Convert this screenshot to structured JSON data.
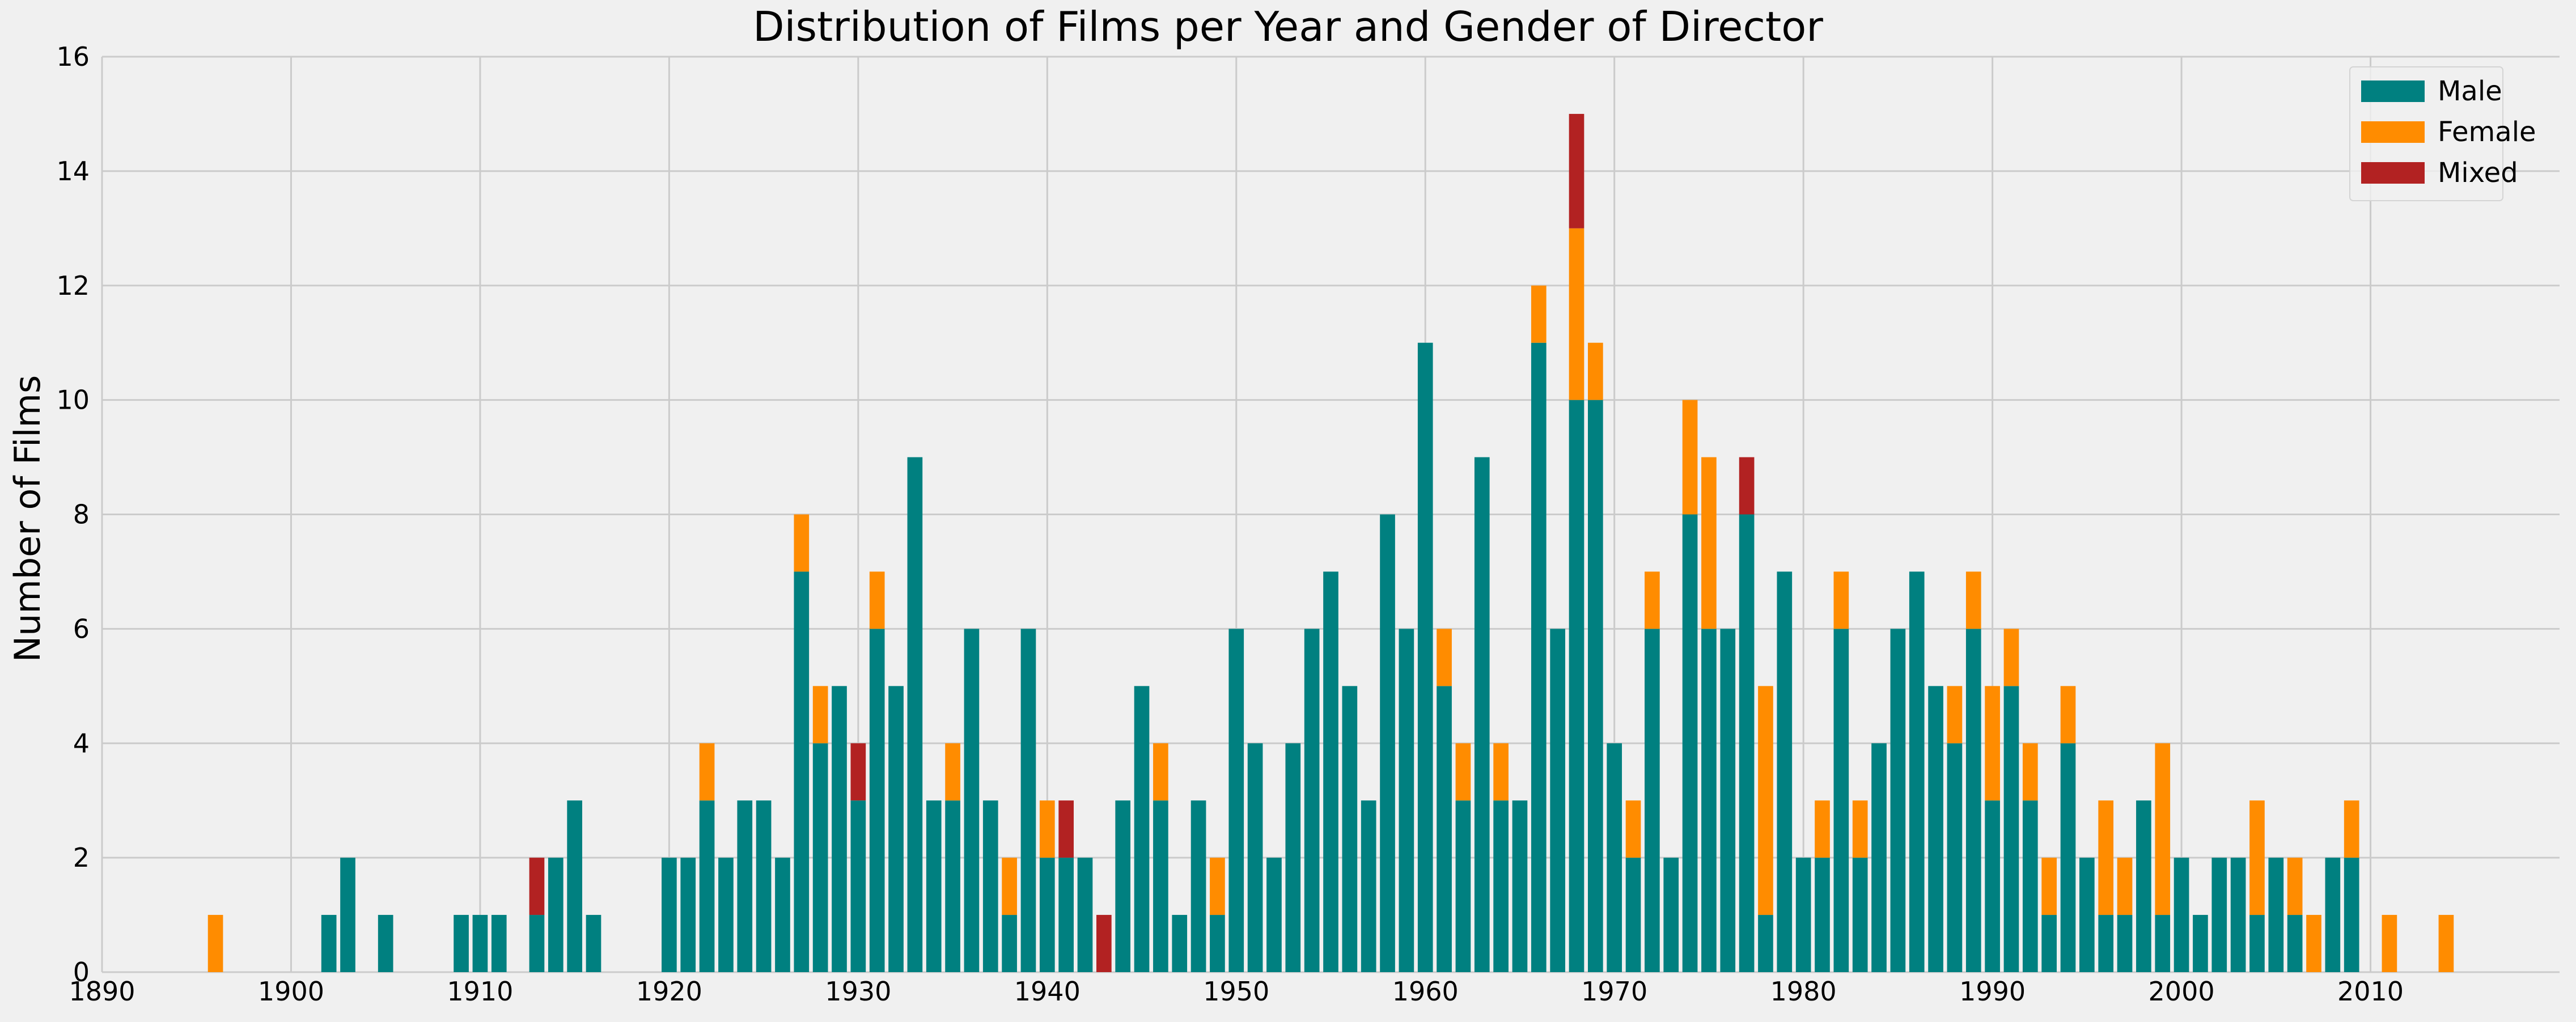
{
  "chart_data": {
    "type": "bar",
    "stacked": true,
    "title": "Distribution of Films per Year and Gender of Director",
    "xlabel": "",
    "ylabel": "Number of Films",
    "xlim": [
      1890,
      2020
    ],
    "ylim": [
      0,
      16
    ],
    "x_ticks": [
      1890,
      1900,
      1910,
      1920,
      1930,
      1940,
      1950,
      1960,
      1970,
      1980,
      1990,
      2000,
      2010
    ],
    "y_ticks": [
      0,
      2,
      4,
      6,
      8,
      10,
      12,
      14,
      16
    ],
    "grid": true,
    "legend_position": "top-right",
    "series": [
      {
        "name": "Male",
        "color": "#008080",
        "data": [
          [
            1902,
            1
          ],
          [
            1903,
            2
          ],
          [
            1905,
            1
          ],
          [
            1909,
            1
          ],
          [
            1910,
            1
          ],
          [
            1911,
            1
          ],
          [
            1913,
            1
          ],
          [
            1914,
            2
          ],
          [
            1915,
            3
          ],
          [
            1916,
            1
          ],
          [
            1920,
            2
          ],
          [
            1921,
            2
          ],
          [
            1922,
            3
          ],
          [
            1923,
            2
          ],
          [
            1924,
            3
          ],
          [
            1925,
            3
          ],
          [
            1926,
            2
          ],
          [
            1927,
            7
          ],
          [
            1928,
            4
          ],
          [
            1929,
            5
          ],
          [
            1930,
            3
          ],
          [
            1931,
            6
          ],
          [
            1932,
            5
          ],
          [
            1933,
            9
          ],
          [
            1934,
            3
          ],
          [
            1935,
            3
          ],
          [
            1936,
            6
          ],
          [
            1937,
            3
          ],
          [
            1938,
            1
          ],
          [
            1939,
            6
          ],
          [
            1940,
            2
          ],
          [
            1941,
            2
          ],
          [
            1942,
            2
          ],
          [
            1944,
            3
          ],
          [
            1945,
            5
          ],
          [
            1946,
            3
          ],
          [
            1947,
            1
          ],
          [
            1948,
            3
          ],
          [
            1949,
            1
          ],
          [
            1950,
            6
          ],
          [
            1951,
            4
          ],
          [
            1952,
            2
          ],
          [
            1953,
            4
          ],
          [
            1954,
            6
          ],
          [
            1955,
            7
          ],
          [
            1956,
            5
          ],
          [
            1957,
            3
          ],
          [
            1958,
            8
          ],
          [
            1959,
            6
          ],
          [
            1960,
            11
          ],
          [
            1961,
            5
          ],
          [
            1962,
            3
          ],
          [
            1963,
            9
          ],
          [
            1964,
            3
          ],
          [
            1965,
            3
          ],
          [
            1966,
            11
          ],
          [
            1967,
            6
          ],
          [
            1968,
            10
          ],
          [
            1969,
            10
          ],
          [
            1970,
            4
          ],
          [
            1971,
            2
          ],
          [
            1972,
            6
          ],
          [
            1973,
            2
          ],
          [
            1974,
            8
          ],
          [
            1975,
            6
          ],
          [
            1976,
            6
          ],
          [
            1977,
            8
          ],
          [
            1978,
            1
          ],
          [
            1979,
            7
          ],
          [
            1980,
            2
          ],
          [
            1981,
            2
          ],
          [
            1982,
            6
          ],
          [
            1983,
            2
          ],
          [
            1984,
            4
          ],
          [
            1985,
            6
          ],
          [
            1986,
            7
          ],
          [
            1987,
            5
          ],
          [
            1988,
            4
          ],
          [
            1989,
            6
          ],
          [
            1990,
            3
          ],
          [
            1991,
            5
          ],
          [
            1992,
            3
          ],
          [
            1993,
            1
          ],
          [
            1994,
            4
          ],
          [
            1995,
            2
          ],
          [
            1996,
            1
          ],
          [
            1997,
            1
          ],
          [
            1998,
            3
          ],
          [
            1999,
            1
          ],
          [
            2000,
            2
          ],
          [
            2001,
            1
          ],
          [
            2002,
            2
          ],
          [
            2003,
            2
          ],
          [
            2004,
            1
          ],
          [
            2005,
            2
          ],
          [
            2006,
            1
          ],
          [
            2008,
            2
          ],
          [
            2009,
            2
          ]
        ]
      },
      {
        "name": "Female",
        "color": "#ff8c00",
        "data": [
          [
            1896,
            1
          ],
          [
            1922,
            1
          ],
          [
            1927,
            1
          ],
          [
            1928,
            1
          ],
          [
            1931,
            1
          ],
          [
            1935,
            1
          ],
          [
            1938,
            1
          ],
          [
            1940,
            1
          ],
          [
            1946,
            1
          ],
          [
            1949,
            1
          ],
          [
            1961,
            1
          ],
          [
            1962,
            1
          ],
          [
            1964,
            1
          ],
          [
            1966,
            1
          ],
          [
            1968,
            3
          ],
          [
            1969,
            1
          ],
          [
            1971,
            1
          ],
          [
            1972,
            1
          ],
          [
            1974,
            2
          ],
          [
            1975,
            3
          ],
          [
            1978,
            4
          ],
          [
            1981,
            1
          ],
          [
            1982,
            1
          ],
          [
            1983,
            1
          ],
          [
            1988,
            1
          ],
          [
            1989,
            1
          ],
          [
            1990,
            2
          ],
          [
            1991,
            1
          ],
          [
            1992,
            1
          ],
          [
            1993,
            1
          ],
          [
            1994,
            1
          ],
          [
            1996,
            2
          ],
          [
            1997,
            1
          ],
          [
            1999,
            3
          ],
          [
            2004,
            2
          ],
          [
            2006,
            1
          ],
          [
            2007,
            1
          ],
          [
            2009,
            1
          ],
          [
            2011,
            1
          ],
          [
            2014,
            1
          ]
        ]
      },
      {
        "name": "Mixed",
        "color": "#b22222",
        "data": [
          [
            1913,
            1
          ],
          [
            1930,
            1
          ],
          [
            1941,
            1
          ],
          [
            1943,
            1
          ],
          [
            1968,
            2
          ],
          [
            1977,
            1
          ]
        ]
      }
    ]
  }
}
